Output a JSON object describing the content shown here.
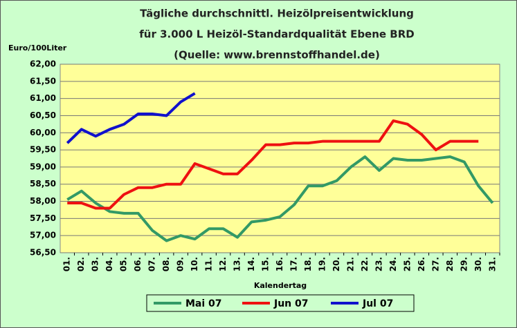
{
  "chart_data": {
    "type": "line",
    "title": [
      "Tägliche durchschnittl. Heizölpreisentwicklung",
      "für 3.000 L Heizöl-Standardqualität Ebene BRD",
      "(Quelle: www.brennstoffhandel.de)"
    ],
    "y_label": "Euro/100Liter",
    "x_label": "Kalendertag",
    "categories": [
      "01.",
      "02.",
      "03.",
      "04.",
      "05.",
      "06.",
      "07.",
      "08.",
      "09.",
      "10.",
      "11.",
      "12.",
      "13.",
      "14.",
      "15.",
      "16.",
      "17.",
      "18.",
      "19.",
      "20.",
      "21.",
      "22.",
      "23.",
      "24.",
      "25.",
      "26.",
      "27.",
      "28.",
      "29.",
      "30.",
      "31."
    ],
    "series": [
      {
        "name": "Mai 07",
        "color": "#339966",
        "values": [
          58.05,
          58.3,
          57.95,
          57.7,
          57.65,
          57.65,
          57.15,
          56.85,
          57.0,
          56.9,
          57.2,
          57.2,
          56.95,
          57.4,
          57.45,
          57.55,
          57.9,
          58.45,
          58.45,
          58.6,
          59.0,
          59.3,
          58.9,
          59.25,
          59.2,
          59.2,
          59.25,
          59.3,
          59.15,
          58.45,
          57.95
        ]
      },
      {
        "name": "Jun 07",
        "color": "#ee1111",
        "values": [
          57.95,
          57.95,
          57.8,
          57.8,
          58.2,
          58.4,
          58.4,
          58.5,
          58.5,
          59.1,
          58.95,
          58.8,
          58.8,
          59.2,
          59.65,
          59.65,
          59.7,
          59.7,
          59.75,
          59.75,
          59.75,
          59.75,
          59.75,
          60.35,
          60.25,
          59.95,
          59.5,
          59.75,
          59.75,
          59.75,
          null
        ]
      },
      {
        "name": "Jul 07",
        "color": "#1111cc",
        "values": [
          59.7,
          60.1,
          59.9,
          60.1,
          60.25,
          60.55,
          60.55,
          60.5,
          60.9,
          61.15,
          null,
          null,
          null,
          null,
          null,
          null,
          null,
          null,
          null,
          null,
          null,
          null,
          null,
          null,
          null,
          null,
          null,
          null,
          null,
          null,
          null
        ]
      }
    ],
    "ylim": [
      56.5,
      62
    ],
    "yticks": [
      {
        "value": 56.5,
        "label": "56,50"
      },
      {
        "value": 57,
        "label": "57,00"
      },
      {
        "value": 57.5,
        "label": "57,50"
      },
      {
        "value": 58,
        "label": "58,00"
      },
      {
        "value": 58.5,
        "label": "58,50"
      },
      {
        "value": 59,
        "label": "59,00"
      },
      {
        "value": 59.5,
        "label": "59,50"
      },
      {
        "value": 60,
        "label": "60,00"
      },
      {
        "value": 60.5,
        "label": "60,50"
      },
      {
        "value": 61,
        "label": "61,00"
      },
      {
        "value": 61.5,
        "label": "61,50"
      },
      {
        "value": 62,
        "label": "62,00"
      }
    ],
    "grid": true,
    "legend": "bottom"
  }
}
